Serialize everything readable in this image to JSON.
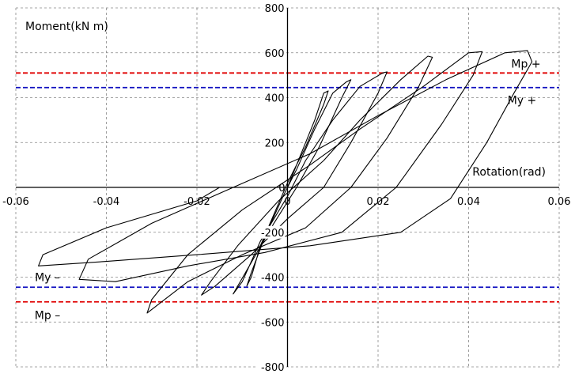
{
  "chart_data": {
    "type": "line",
    "title": "",
    "xlabel": "Rotation(rad)",
    "ylabel": "Moment(kN m)",
    "xlim": [
      -0.06,
      0.06
    ],
    "ylim": [
      -800,
      800
    ],
    "grid": true,
    "x_ticks": [
      "-0.06",
      "-0.04",
      "-0.02",
      "0",
      "0.02",
      "0.04",
      "0.06"
    ],
    "y_ticks": [
      "800",
      "600",
      "400",
      "200",
      "0",
      "-200",
      "-400",
      "-600",
      "-800"
    ],
    "reference_lines": [
      {
        "label": "Mp +",
        "y": 510,
        "color": "#e00000"
      },
      {
        "label": "My +",
        "y": 445,
        "color": "#1010c0"
      },
      {
        "label": "My –",
        "y": -445,
        "color": "#1010c0"
      },
      {
        "label": "Mp –",
        "y": -510,
        "color": "#e00000"
      }
    ],
    "series": [
      {
        "values": [
          [
            0,
            0
          ],
          [
            0.003,
            150
          ],
          [
            0.006,
            300
          ],
          [
            0.008,
            420
          ],
          [
            0.009,
            430
          ],
          [
            0.008,
            370
          ],
          [
            0.004,
            180
          ],
          [
            0,
            20
          ],
          [
            -0.003,
            -120
          ],
          [
            -0.006,
            -260
          ],
          [
            -0.008,
            -400
          ],
          [
            -0.009,
            -440
          ],
          [
            -0.008,
            -380
          ],
          [
            -0.005,
            -220
          ],
          [
            -0.001,
            -40
          ],
          [
            0.002,
            80
          ]
        ]
      },
      {
        "values": [
          [
            0.002,
            80
          ],
          [
            0.006,
            260
          ],
          [
            0.01,
            420
          ],
          [
            0.013,
            470
          ],
          [
            0.014,
            480
          ],
          [
            0.012,
            400
          ],
          [
            0.007,
            180
          ],
          [
            0.002,
            0
          ],
          [
            -0.003,
            -160
          ],
          [
            -0.007,
            -300
          ],
          [
            -0.011,
            -440
          ],
          [
            -0.012,
            -475
          ],
          [
            -0.01,
            -420
          ],
          [
            -0.006,
            -240
          ],
          [
            0,
            -40
          ],
          [
            0.004,
            120
          ]
        ]
      },
      {
        "values": [
          [
            0.004,
            120
          ],
          [
            0.01,
            300
          ],
          [
            0.016,
            450
          ],
          [
            0.021,
            510
          ],
          [
            0.022,
            515
          ],
          [
            0.02,
            420
          ],
          [
            0.014,
            200
          ],
          [
            0.008,
            0
          ],
          [
            0,
            -140
          ],
          [
            -0.008,
            -300
          ],
          [
            -0.016,
            -440
          ],
          [
            -0.019,
            -480
          ],
          [
            -0.017,
            -420
          ],
          [
            -0.011,
            -260
          ],
          [
            -0.002,
            -60
          ],
          [
            0.008,
            120
          ]
        ]
      },
      {
        "values": [
          [
            0.008,
            120
          ],
          [
            0.016,
            300
          ],
          [
            0.025,
            480
          ],
          [
            0.031,
            585
          ],
          [
            0.032,
            580
          ],
          [
            0.029,
            450
          ],
          [
            0.022,
            220
          ],
          [
            0.014,
            0
          ],
          [
            0.004,
            -180
          ],
          [
            -0.01,
            -300
          ],
          [
            -0.022,
            -420
          ],
          [
            -0.031,
            -560
          ],
          [
            -0.03,
            -500
          ],
          [
            -0.022,
            -300
          ],
          [
            -0.01,
            -100
          ],
          [
            0.005,
            100
          ]
        ]
      },
      {
        "values": [
          [
            0.005,
            100
          ],
          [
            0.016,
            260
          ],
          [
            0.03,
            450
          ],
          [
            0.04,
            600
          ],
          [
            0.043,
            605
          ],
          [
            0.041,
            500
          ],
          [
            0.034,
            280
          ],
          [
            0.024,
            0
          ],
          [
            0.012,
            -200
          ],
          [
            -0.005,
            -290
          ],
          [
            -0.022,
            -350
          ],
          [
            -0.038,
            -420
          ],
          [
            -0.046,
            -410
          ],
          [
            -0.044,
            -320
          ],
          [
            -0.03,
            -160
          ],
          [
            -0.012,
            0
          ],
          [
            0.005,
            150
          ]
        ]
      },
      {
        "values": [
          [
            0.005,
            150
          ],
          [
            0.02,
            320
          ],
          [
            0.035,
            480
          ],
          [
            0.048,
            600
          ],
          [
            0.053,
            610
          ],
          [
            0.054,
            560
          ],
          [
            0.05,
            420
          ],
          [
            0.044,
            200
          ],
          [
            0.036,
            -50
          ],
          [
            0.025,
            -200
          ],
          [
            0.005,
            -260
          ],
          [
            -0.02,
            -300
          ],
          [
            -0.04,
            -330
          ],
          [
            -0.055,
            -350
          ],
          [
            -0.054,
            -300
          ],
          [
            -0.04,
            -180
          ],
          [
            -0.02,
            -60
          ],
          [
            -0.015,
            0
          ]
        ]
      }
    ]
  }
}
